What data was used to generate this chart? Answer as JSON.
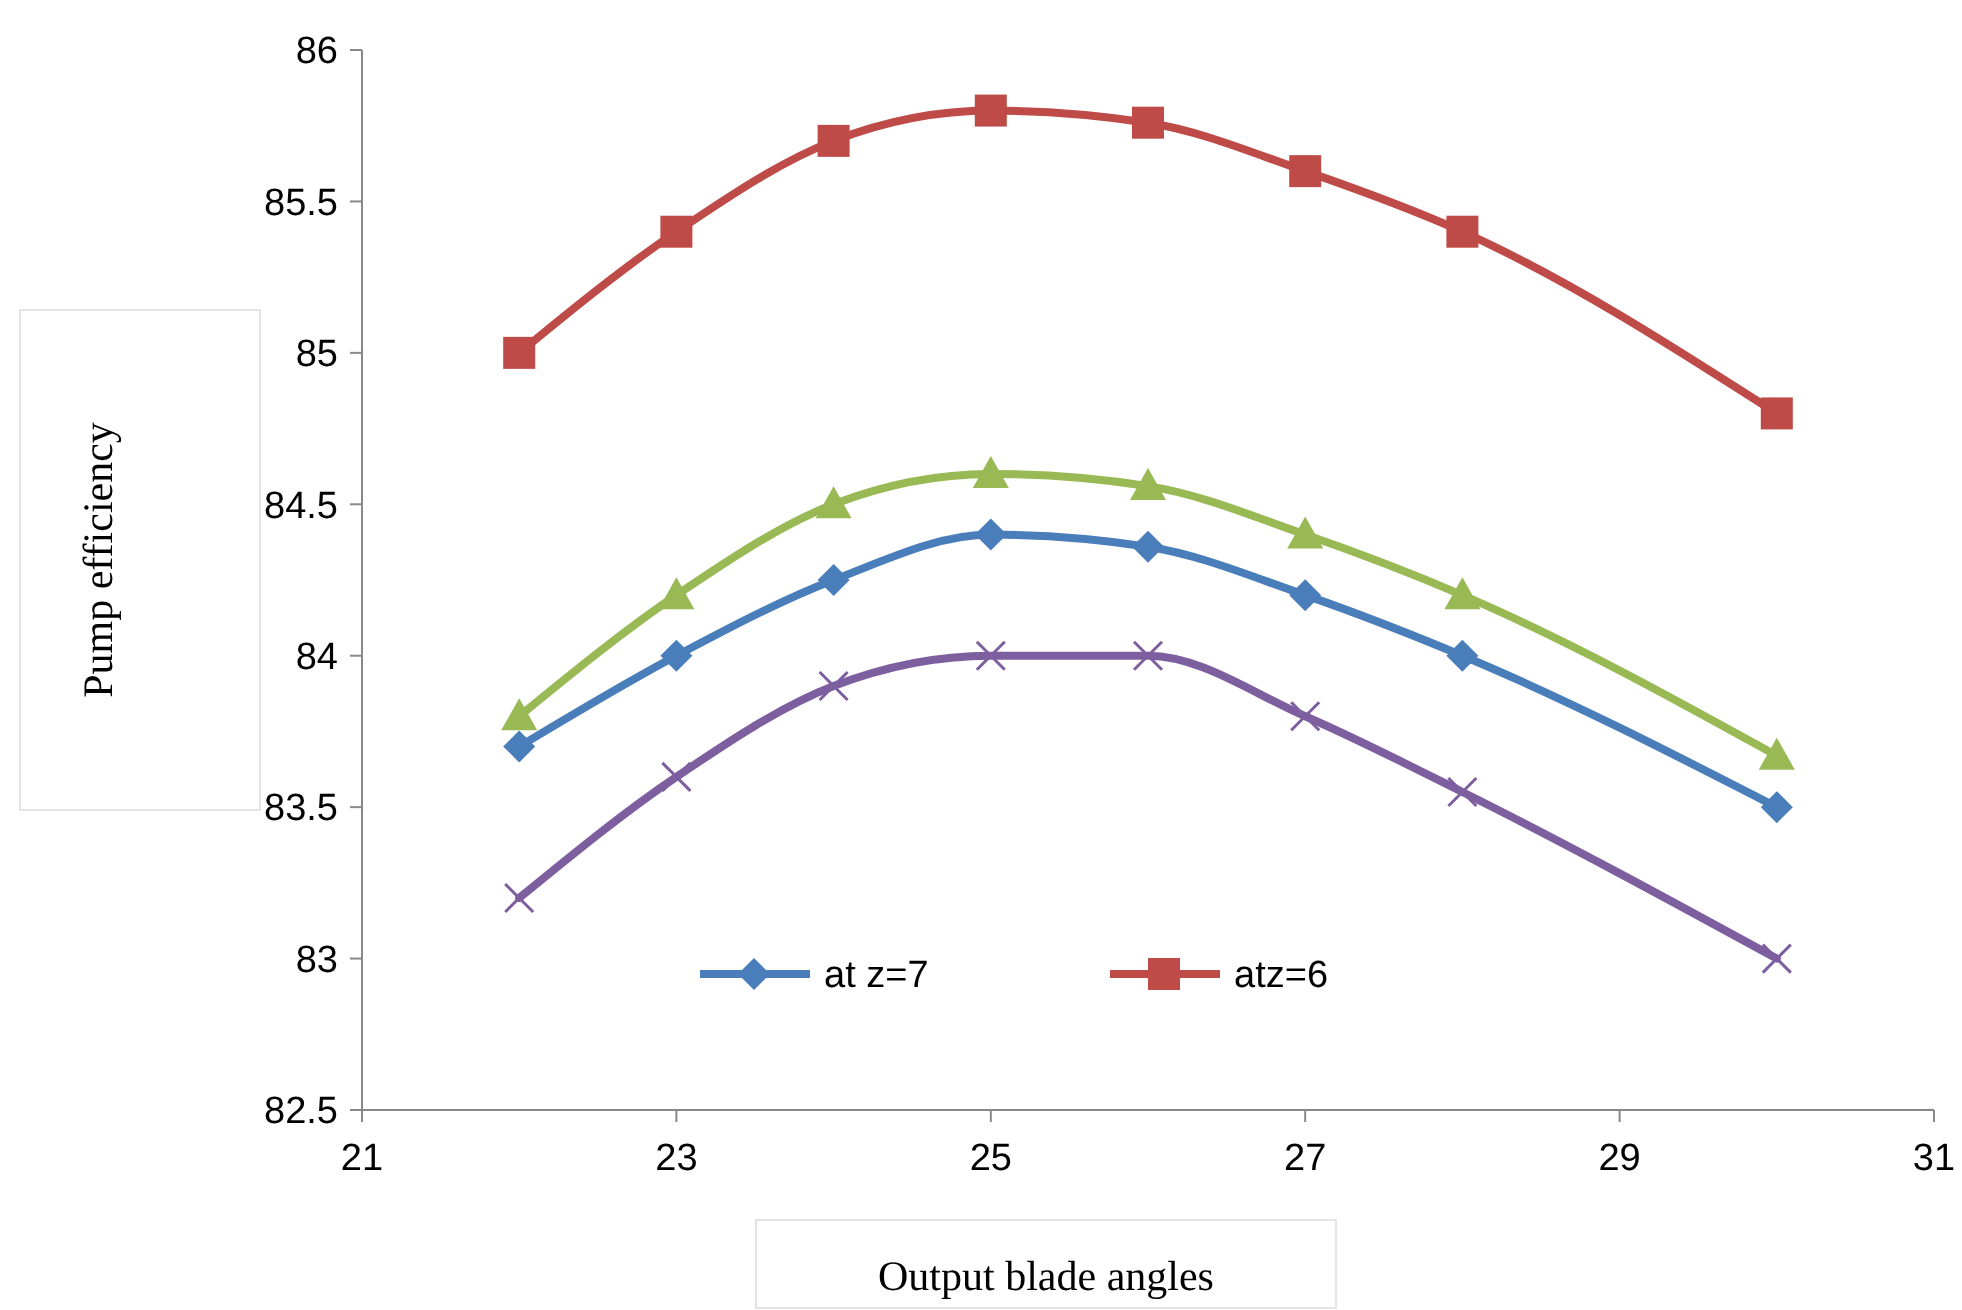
{
  "chart_data": {
    "type": "line",
    "xlabel": "Output blade angles",
    "ylabel": "Pump efficiency",
    "xlim": [
      21,
      31
    ],
    "xticks": [
      21,
      23,
      25,
      27,
      29,
      31
    ],
    "ylim": [
      82.5,
      86
    ],
    "yticks": [
      82.5,
      83,
      83.5,
      84,
      84.5,
      85,
      85.5,
      86
    ],
    "grid": false,
    "legend": "bottom",
    "x": [
      22,
      23,
      24,
      25,
      26,
      27,
      28,
      30
    ],
    "series": [
      {
        "name": "at z=7",
        "color": "#4a7ebb",
        "marker": "diamond",
        "values": [
          83.7,
          84,
          84.25,
          84.4,
          84.36,
          84.2,
          84,
          83.5
        ]
      },
      {
        "name": "atz=6",
        "color": "#be4b48",
        "marker": "square",
        "values": [
          85,
          85.4,
          85.7,
          85.8,
          85.76,
          85.6,
          85.4,
          84.8
        ]
      },
      {
        "color": "#98b954",
        "marker": "triangle",
        "values": [
          83.8,
          84.2,
          84.5,
          84.6,
          84.56,
          84.4,
          84.2,
          83.67
        ]
      },
      {
        "color": "#7d5fa0",
        "marker": "cross",
        "values": [
          83.2,
          83.6,
          83.9,
          84,
          84,
          83.8,
          83.55,
          83
        ]
      }
    ]
  }
}
